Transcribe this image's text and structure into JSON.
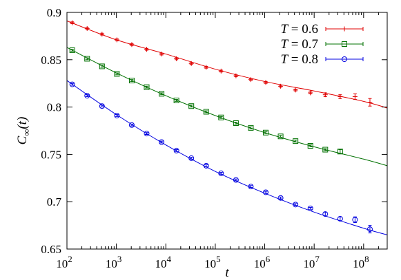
{
  "chart_data": {
    "type": "line",
    "title": "",
    "xlabel": "t",
    "ylabel": "C∞(t)",
    "xscale": "log",
    "xlim": [
      100,
      300000000
    ],
    "ylim": [
      0.65,
      0.9
    ],
    "x_ticks": [
      {
        "value": 100,
        "base": "10",
        "exp": "2"
      },
      {
        "value": 1000,
        "base": "10",
        "exp": "3"
      },
      {
        "value": 10000,
        "base": "10",
        "exp": "4"
      },
      {
        "value": 100000,
        "base": "10",
        "exp": "5"
      },
      {
        "value": 1000000,
        "base": "10",
        "exp": "6"
      },
      {
        "value": 10000000,
        "base": "10",
        "exp": "7"
      },
      {
        "value": 100000000,
        "base": "10",
        "exp": "8"
      }
    ],
    "y_ticks": [
      {
        "value": 0.65,
        "label": "0.65"
      },
      {
        "value": 0.7,
        "label": "0.7"
      },
      {
        "value": 0.75,
        "label": "0.75"
      },
      {
        "value": 0.8,
        "label": "0.8"
      },
      {
        "value": 0.85,
        "label": "0.85"
      },
      {
        "value": 0.9,
        "label": "0.9"
      }
    ],
    "legend_position": "top-right",
    "series": [
      {
        "name": "T = 0.6",
        "color": "#e00000",
        "marker": "plus",
        "x": [
          128,
          256,
          512,
          1024,
          2048,
          4096,
          8192,
          16384,
          32768,
          65536,
          131072,
          262144,
          524288,
          1048576,
          2097152,
          4194304,
          8388608,
          16777216,
          33554432,
          67108864,
          134217728
        ],
        "y": [
          0.889,
          0.883,
          0.877,
          0.871,
          0.866,
          0.861,
          0.856,
          0.851,
          0.846,
          0.842,
          0.838,
          0.833,
          0.829,
          0.826,
          0.822,
          0.818,
          0.815,
          0.813,
          0.811,
          0.811,
          0.805
        ],
        "err": [
          0.001,
          0.001,
          0.001,
          0.001,
          0.001,
          0.001,
          0.001,
          0.001,
          0.001,
          0.001,
          0.001,
          0.001,
          0.001,
          0.001,
          0.001,
          0.001,
          0.001,
          0.002,
          0.002,
          0.003,
          0.004
        ],
        "fit": [
          [
            100,
            0.891
          ],
          [
            1000,
            0.871
          ],
          [
            10000,
            0.856
          ],
          [
            100000,
            0.84
          ],
          [
            1000000,
            0.827
          ],
          [
            10000000,
            0.817
          ],
          [
            100000000,
            0.806
          ],
          [
            300000000,
            0.799
          ]
        ]
      },
      {
        "name": "T = 0.7",
        "color": "#007000",
        "marker": "square",
        "x": [
          128,
          256,
          512,
          1024,
          2048,
          4096,
          8192,
          16384,
          32768,
          65536,
          131072,
          262144,
          524288,
          1048576,
          2097152,
          4194304,
          8388608,
          16777216,
          33554432
        ],
        "y": [
          0.86,
          0.851,
          0.843,
          0.835,
          0.828,
          0.821,
          0.814,
          0.807,
          0.801,
          0.795,
          0.789,
          0.783,
          0.778,
          0.773,
          0.769,
          0.764,
          0.759,
          0.755,
          0.753
        ],
        "err": [
          0.001,
          0.001,
          0.001,
          0.001,
          0.001,
          0.001,
          0.001,
          0.001,
          0.001,
          0.001,
          0.001,
          0.001,
          0.001,
          0.001,
          0.001,
          0.001,
          0.001,
          0.001,
          0.002
        ],
        "fit": [
          [
            100,
            0.863
          ],
          [
            1000,
            0.836
          ],
          [
            10000,
            0.812
          ],
          [
            100000,
            0.791
          ],
          [
            1000000,
            0.773
          ],
          [
            10000000,
            0.758
          ],
          [
            100000000,
            0.745
          ],
          [
            300000000,
            0.738
          ]
        ]
      },
      {
        "name": "T = 0.8",
        "color": "#0000e0",
        "marker": "circle",
        "x": [
          128,
          256,
          512,
          1024,
          2048,
          4096,
          8192,
          16384,
          32768,
          65536,
          131072,
          262144,
          524288,
          1048576,
          2097152,
          4194304,
          8388608,
          16777216,
          33554432,
          67108864,
          134217728
        ],
        "y": [
          0.824,
          0.812,
          0.801,
          0.791,
          0.781,
          0.772,
          0.763,
          0.754,
          0.746,
          0.738,
          0.73,
          0.723,
          0.716,
          0.71,
          0.704,
          0.697,
          0.693,
          0.687,
          0.682,
          0.681,
          0.671
        ],
        "err": [
          0.001,
          0.001,
          0.001,
          0.001,
          0.001,
          0.001,
          0.001,
          0.001,
          0.001,
          0.001,
          0.001,
          0.001,
          0.001,
          0.001,
          0.001,
          0.001,
          0.001,
          0.002,
          0.002,
          0.003,
          0.004
        ],
        "fit": [
          [
            100,
            0.828
          ],
          [
            1000,
            0.792
          ],
          [
            10000,
            0.76
          ],
          [
            100000,
            0.732
          ],
          [
            1000000,
            0.709
          ],
          [
            10000000,
            0.689
          ],
          [
            100000000,
            0.672
          ],
          [
            300000000,
            0.665
          ]
        ]
      }
    ]
  }
}
